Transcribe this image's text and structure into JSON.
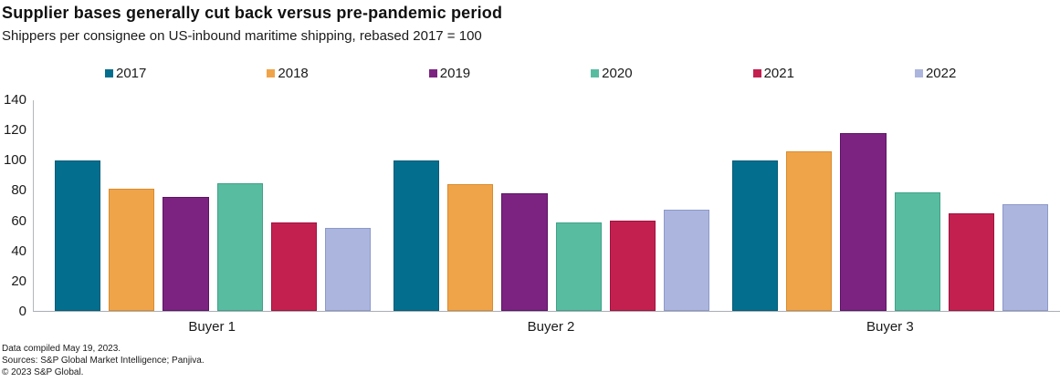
{
  "title": "Supplier bases generally cut back versus pre-pandemic period",
  "subtitle": "Shippers per consignee on US-inbound maritime shipping, rebased 2017 = 100",
  "chart_data": {
    "type": "bar",
    "title": "Supplier bases generally cut back versus pre-pandemic period",
    "subtitle": "Shippers per consignee on US-inbound maritime shipping, rebased 2017 = 100",
    "categories": [
      "Buyer 1",
      "Buyer 2",
      "Buyer 3"
    ],
    "series": [
      {
        "name": "2017",
        "color": "#046e8e",
        "edge": "#025c78",
        "values": [
          100,
          100,
          100
        ]
      },
      {
        "name": "2018",
        "color": "#f0a44a",
        "edge": "#d98b2c",
        "values": [
          81,
          84,
          106
        ]
      },
      {
        "name": "2019",
        "color": "#7c2382",
        "edge": "#5e1365",
        "values": [
          76,
          78,
          118
        ]
      },
      {
        "name": "2020",
        "color": "#58bca1",
        "edge": "#3fa287",
        "values": [
          85,
          59,
          79
        ]
      },
      {
        "name": "2021",
        "color": "#c32050",
        "edge": "#a0123d",
        "values": [
          59,
          60,
          65
        ]
      },
      {
        "name": "2022",
        "color": "#acb5de",
        "edge": "#8d99c9",
        "values": [
          55,
          67,
          71
        ]
      }
    ],
    "xlabel": "",
    "ylabel": "",
    "ylim": [
      0,
      140
    ],
    "yticks": [
      0,
      20,
      40,
      60,
      80,
      100,
      120,
      140
    ],
    "grid": false,
    "legend_position": "top"
  },
  "footer": {
    "line1": "Data compiled May 19, 2023.",
    "line2": "Sources: S&P Global Market Intelligence; Panjiva.",
    "line3": "© 2023 S&P Global."
  }
}
